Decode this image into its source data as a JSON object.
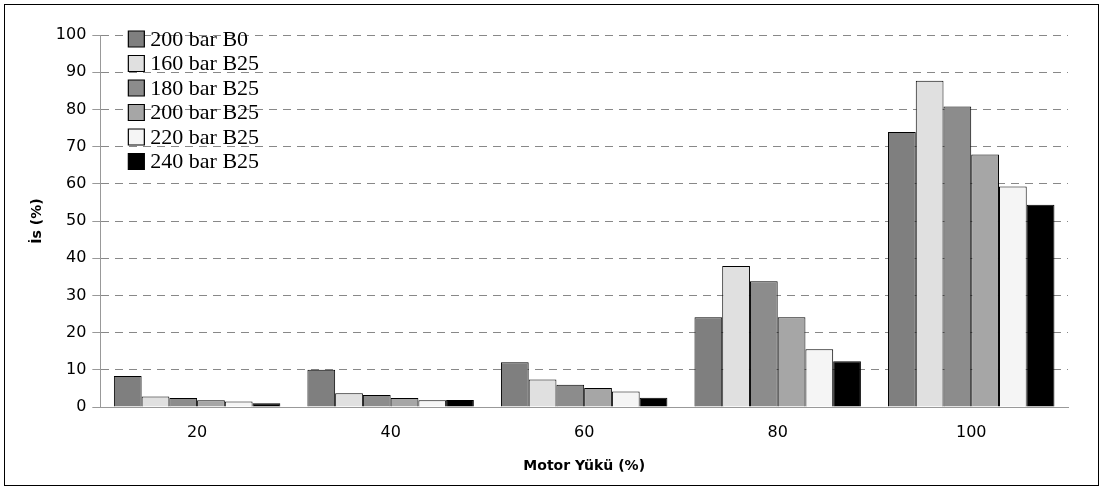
{
  "chart_data": {
    "type": "bar",
    "xlabel": "Motor Yükü (%)",
    "ylabel": "İs (%)",
    "categories": [
      "20",
      "40",
      "60",
      "80",
      "100"
    ],
    "series": [
      {
        "name": "200 bar B0",
        "color": "#7f7f7f",
        "values": [
          8.3,
          10,
          12,
          24.1,
          73.9
        ]
      },
      {
        "name": "160 bar B25",
        "color": "#e0e0e0",
        "values": [
          2.8,
          3.7,
          7.4,
          37.9,
          87.7
        ]
      },
      {
        "name": "180 bar B25",
        "color": "#8c8c8c",
        "values": [
          2.4,
          3.2,
          6,
          33.8,
          80.8
        ]
      },
      {
        "name": "200 bar B25",
        "color": "#a6a6a6",
        "values": [
          1.8,
          2.4,
          5.1,
          24.1,
          67.9
        ]
      },
      {
        "name": "220 bar B25",
        "color": "#f5f5f5",
        "values": [
          1.5,
          1.8,
          4.2,
          15.5,
          59.3
        ]
      },
      {
        "name": "240 bar B25",
        "color": "#000000",
        "values": [
          1,
          1.9,
          2.5,
          12.3,
          54.4
        ]
      }
    ],
    "ylim": [
      0,
      100
    ],
    "yticks": [
      0,
      10,
      20,
      30,
      40,
      50,
      60,
      70,
      80,
      90,
      100
    ],
    "grid": "y",
    "legend": "top left"
  }
}
